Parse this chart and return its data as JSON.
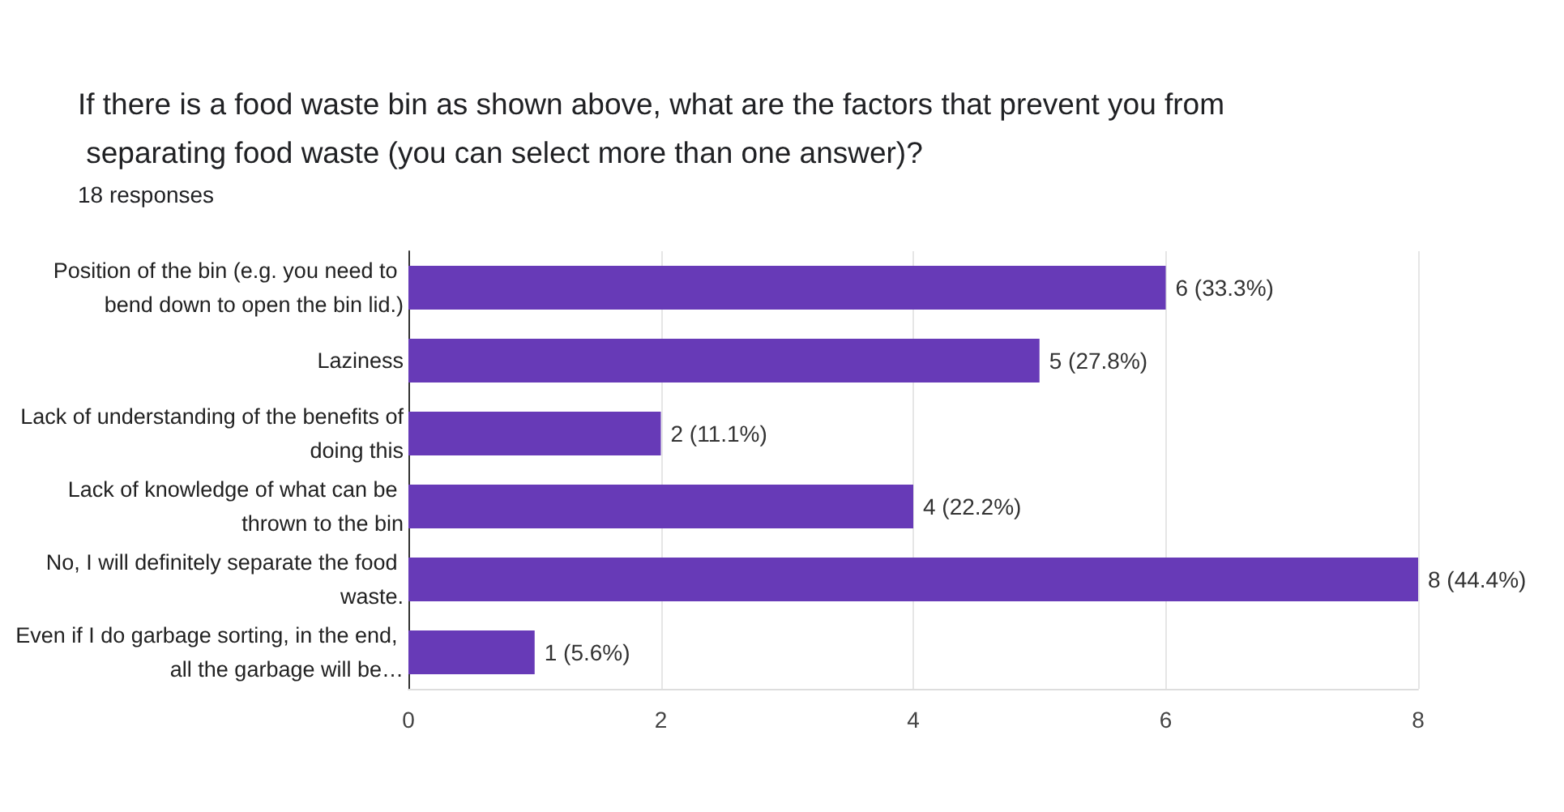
{
  "chart_data": {
    "type": "bar",
    "orientation": "horizontal",
    "title": "If there is a food waste bin as shown above, what are the factors that prevent you from separating food waste (you can select more than one answer)?",
    "subtitle": "18 responses",
    "categories": [
      "Position of the bin (e.g. you need to bend down to open the bin lid.)",
      "Laziness",
      "Lack of understanding of the benefits of doing this",
      "Lack of knowledge of what can be thrown to the bin",
      "No, I will definitely separate the food waste.",
      "Even if I do garbage sorting, in the end, all the garbage will be…"
    ],
    "values": [
      6,
      5,
      2,
      4,
      8,
      1
    ],
    "value_labels": [
      "6 (33.3%)",
      "5 (27.8%)",
      "2 (11.1%)",
      "4 (22.2%)",
      "8 (44.4%)",
      "1 (5.6%)"
    ],
    "color": "#673ab7",
    "xlim": [
      0,
      8
    ],
    "xticks": [
      0,
      2,
      4,
      6,
      8
    ],
    "grid": "x"
  }
}
